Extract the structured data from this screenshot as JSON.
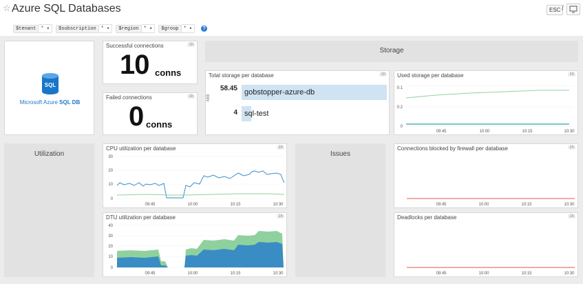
{
  "header": {
    "title": "Azure SQL Databases",
    "esc": "ESC",
    "slash": "/",
    "star_icon": "star-outline-icon",
    "tv_icon": "tv-mode-icon"
  },
  "template_vars": [
    {
      "name": "$tenant",
      "value": "* ▾"
    },
    {
      "name": "$subscription",
      "value": "* ▾"
    },
    {
      "name": "$region",
      "value": "* ▾"
    },
    {
      "name": "$group",
      "value": "* ▾"
    }
  ],
  "help_label": "?",
  "logo": {
    "label_prefix": "Microsoft Azure ",
    "label_bold": "SQL DB",
    "icon_text": "SQL",
    "color": "#1976c8"
  },
  "successful": {
    "title": "Successful connections",
    "badge": "1h",
    "value": "10",
    "unit": "conns"
  },
  "failed": {
    "title": "Failed connections",
    "badge": "1h",
    "value": "0",
    "unit": "conns"
  },
  "groups": {
    "storage": "Storage",
    "utilization": "Utilization",
    "issues": "Issues"
  },
  "total_storage": {
    "title": "Total storage per database",
    "badge": "1h",
    "unit": "MiB",
    "rows": [
      {
        "value": "58.45",
        "name": "gobstopper-azure-db",
        "fraction": 1.0
      },
      {
        "value": "4",
        "name": "sql-test",
        "fraction": 0.07
      }
    ],
    "bar_color": "#cfe3f2"
  },
  "x_ticks": [
    "09:45",
    "10:00",
    "10:15",
    "10:30"
  ],
  "used_storage": {
    "title": "Used storage per database",
    "badge": "1h",
    "y_ticks": [
      "0.2",
      "0.1",
      "0"
    ]
  },
  "cpu": {
    "title": "CPU utilization per database",
    "badge": "1h",
    "y_ticks": [
      "30",
      "20",
      "10",
      "0"
    ]
  },
  "dtu": {
    "title": "DTU utilization per database",
    "badge": "1h",
    "y_ticks": [
      "40",
      "30",
      "20",
      "10",
      "0"
    ]
  },
  "firewall": {
    "title": "Connections blocked by firewall per database",
    "badge": "1h"
  },
  "deadlocks": {
    "title": "Deadlocks per database",
    "badge": "1h"
  },
  "colors": {
    "blue": "#3a8dc4",
    "green": "#8fd19e",
    "red": "#e2574c",
    "teal": "#2aa3a3"
  }
}
